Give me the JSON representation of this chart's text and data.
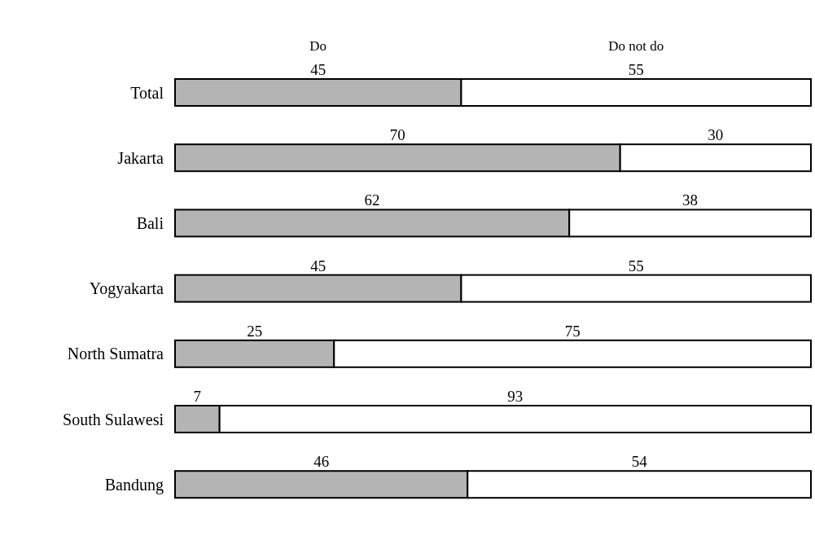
{
  "chart_data": {
    "type": "bar",
    "orientation": "horizontal",
    "stacked": true,
    "data_labels": true,
    "xlim": [
      0,
      100
    ],
    "categories": [
      "Total",
      "Jakarta",
      "Bali",
      "Yogyakarta",
      "North Sumatra",
      "South Sulawesi",
      "Bandung"
    ],
    "series": [
      {
        "name": "Do",
        "color": "#b4b4b4",
        "values": [
          45,
          70,
          62,
          45,
          25,
          7,
          46
        ]
      },
      {
        "name": "Do not do",
        "color": "#ffffff",
        "values": [
          55,
          30,
          38,
          55,
          75,
          93,
          54
        ]
      }
    ]
  }
}
